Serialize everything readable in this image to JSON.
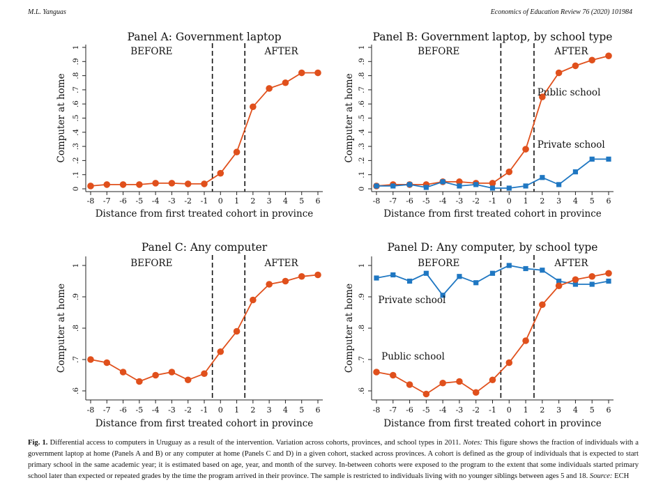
{
  "header": {
    "left": "M.L. Yanguas",
    "right": "Economics of Education Review 76 (2020) 101984"
  },
  "colors": {
    "public": "#e0501c",
    "private": "#1f77c2",
    "dashed": "#111111"
  },
  "chart_data": [
    {
      "type": "line",
      "title": "Panel A: Government laptop",
      "xlabel": "Distance from first treated cohort in province",
      "ylabel": "Computer at home",
      "x": [
        -8,
        -7,
        -6,
        -5,
        -4,
        -3,
        -2,
        -1,
        0,
        1,
        2,
        3,
        4,
        5,
        6
      ],
      "xlim": [
        -8,
        6
      ],
      "ylim": [
        0,
        1
      ],
      "yticks": [
        0,
        0.1,
        0.2,
        0.3,
        0.4,
        0.5,
        0.6,
        0.7,
        0.8,
        0.9,
        1
      ],
      "ytick_labels": [
        "0",
        ".1",
        ".2",
        ".3",
        ".4",
        ".5",
        ".6",
        ".7",
        ".8",
        ".9",
        "1"
      ],
      "vlines": [
        -0.5,
        1.5
      ],
      "before_label": "BEFORE",
      "after_label": "AFTER",
      "series": [
        {
          "values": [
            0.02,
            0.03,
            0.03,
            0.03,
            0.04,
            0.04,
            0.035,
            0.035,
            0.11,
            0.26,
            0.58,
            0.71,
            0.75,
            0.82,
            0.82
          ],
          "marker": "circle",
          "color": "#e0501c"
        }
      ]
    },
    {
      "type": "line",
      "title": "Panel B: Government laptop, by school type",
      "xlabel": "Distance from first treated cohort in province",
      "ylabel": "Computer at home",
      "x": [
        -8,
        -7,
        -6,
        -5,
        -4,
        -3,
        -2,
        -1,
        0,
        1,
        2,
        3,
        4,
        5,
        6
      ],
      "xlim": [
        -8,
        6
      ],
      "ylim": [
        0,
        1
      ],
      "yticks": [
        0,
        0.1,
        0.2,
        0.3,
        0.4,
        0.5,
        0.6,
        0.7,
        0.8,
        0.9,
        1
      ],
      "ytick_labels": [
        "0",
        ".1",
        ".2",
        ".3",
        ".4",
        ".5",
        ".6",
        ".7",
        ".8",
        ".9",
        "1"
      ],
      "vlines": [
        -0.5,
        1.5
      ],
      "before_label": "BEFORE",
      "after_label": "AFTER",
      "series": [
        {
          "name": "Public school",
          "values": [
            0.02,
            0.03,
            0.03,
            0.03,
            0.05,
            0.05,
            0.04,
            0.04,
            0.12,
            0.28,
            0.65,
            0.82,
            0.87,
            0.91,
            0.94
          ],
          "marker": "circle",
          "color": "#e0501c"
        },
        {
          "name": "Private school",
          "values": [
            0.02,
            0.02,
            0.03,
            0.01,
            0.05,
            0.02,
            0.03,
            0.005,
            0.005,
            0.02,
            0.08,
            0.03,
            0.12,
            0.21,
            0.21
          ],
          "marker": "square",
          "color": "#1f77c2"
        }
      ],
      "annotations": [
        {
          "text": "Public school",
          "x": 1.7,
          "y": 0.66
        },
        {
          "text": "Private school",
          "x": 1.7,
          "y": 0.29
        }
      ]
    },
    {
      "type": "line",
      "title": "Panel C: Any computer",
      "xlabel": "Distance from first treated cohort in province",
      "ylabel": "Computer at home",
      "x": [
        -8,
        -7,
        -6,
        -5,
        -4,
        -3,
        -2,
        -1,
        0,
        1,
        2,
        3,
        4,
        5,
        6
      ],
      "xlim": [
        -8,
        6
      ],
      "ylim": [
        0.58,
        1.02
      ],
      "yticks": [
        0.6,
        0.7,
        0.8,
        0.9,
        1
      ],
      "ytick_labels": [
        ".6",
        ".7",
        ".8",
        ".9",
        "1"
      ],
      "vlines": [
        -0.5,
        1.5
      ],
      "before_label": "BEFORE",
      "after_label": "AFTER",
      "series": [
        {
          "values": [
            0.7,
            0.69,
            0.66,
            0.63,
            0.65,
            0.66,
            0.635,
            0.655,
            0.725,
            0.79,
            0.89,
            0.94,
            0.95,
            0.965,
            0.97
          ],
          "marker": "circle",
          "color": "#e0501c"
        }
      ]
    },
    {
      "type": "line",
      "title": "Panel D: Any computer, by school type",
      "xlabel": "Distance from first treated cohort in province",
      "ylabel": "Computer at home",
      "x": [
        -8,
        -7,
        -6,
        -5,
        -4,
        -3,
        -2,
        -1,
        0,
        1,
        2,
        3,
        4,
        5,
        6
      ],
      "xlim": [
        -8,
        6
      ],
      "ylim": [
        0.58,
        1.02
      ],
      "yticks": [
        0.6,
        0.7,
        0.8,
        0.9,
        1
      ],
      "ytick_labels": [
        ".6",
        ".7",
        ".8",
        ".9",
        "1"
      ],
      "vlines": [
        -0.5,
        1.5
      ],
      "before_label": "BEFORE",
      "after_label": "AFTER",
      "series": [
        {
          "name": "Private school",
          "values": [
            0.96,
            0.97,
            0.95,
            0.975,
            0.905,
            0.965,
            0.945,
            0.975,
            1.0,
            0.99,
            0.985,
            0.95,
            0.94,
            0.94,
            0.95
          ],
          "marker": "square",
          "color": "#1f77c2"
        },
        {
          "name": "Public school",
          "values": [
            0.66,
            0.65,
            0.62,
            0.59,
            0.625,
            0.63,
            0.595,
            0.635,
            0.69,
            0.76,
            0.875,
            0.935,
            0.955,
            0.965,
            0.975
          ],
          "marker": "circle",
          "color": "#e0501c"
        }
      ],
      "annotations": [
        {
          "text": "Private school",
          "x": -7.9,
          "y": 0.88
        },
        {
          "text": "Public school",
          "x": -7.7,
          "y": 0.7
        }
      ]
    }
  ],
  "caption": {
    "label": "Fig. 1.",
    "text": "Differential access to computers in Uruguay as a result of the intervention. Variation across cohorts, provinces, and school types in 2011.",
    "notes_label": "Notes:",
    "notes": "This figure shows the fraction of individuals with a government laptop at home (Panels A and B) or any computer at home (Panels C and D) in a given cohort, stacked across provinces. A cohort is defined as the group of individuals that is expected to start primary school in the same academic year; it is estimated based on age, year, and month of the survey. In-between cohorts were exposed to the program to the extent that some individuals started primary school later than expected or repeated grades by the time the program arrived in their province. The sample is restricted to individuals living with no younger siblings between ages 5 and 18.",
    "source_label": "Source:",
    "source": "ECH"
  }
}
